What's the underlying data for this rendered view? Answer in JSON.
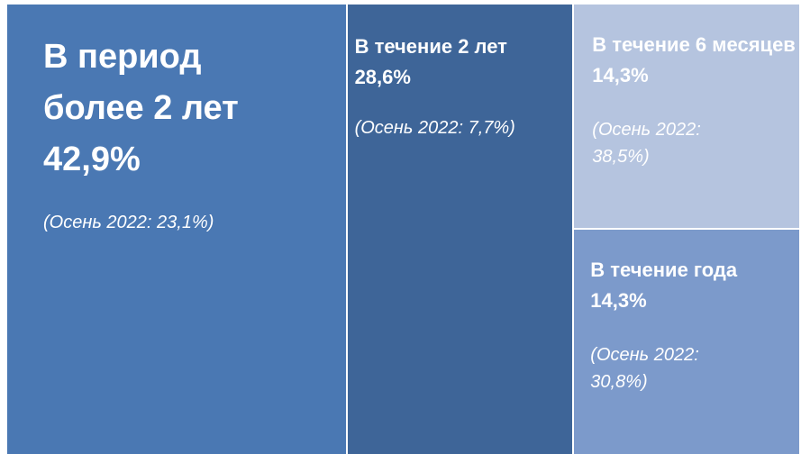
{
  "chart_data": {
    "type": "treemap",
    "categories": [
      "В период более 2 лет",
      "В течение 2 лет",
      "В течение 6 месяцев",
      "В течение года"
    ],
    "values": [
      42.9,
      28.6,
      14.3,
      14.3
    ],
    "value_labels": [
      "42,9%",
      "28,6%",
      "14,3%",
      "14,3%"
    ],
    "notes": [
      "(Осень 2022: 23,1%)",
      "(Осень 2022: 7,7%)",
      "(Осень 2022: 38,5%)",
      "(Осень 2022: 30,8%)"
    ],
    "colors": [
      "#4a78b3",
      "#3e6598",
      "#b5c4df",
      "#7c9acb"
    ]
  }
}
